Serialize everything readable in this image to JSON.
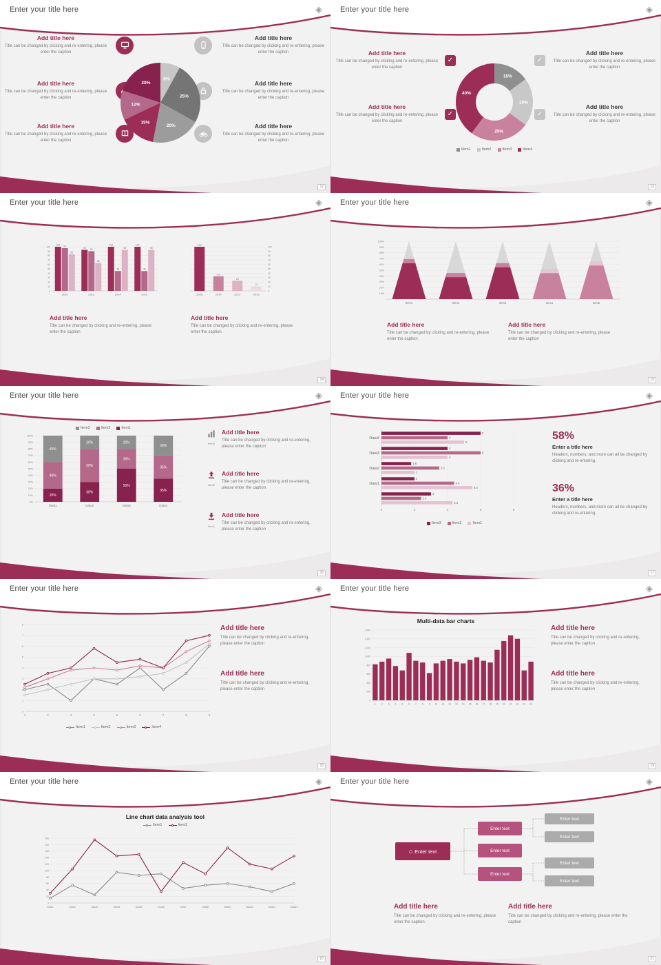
{
  "theme": {
    "maroon": "#9b2d57",
    "maroon_dark": "#86224d",
    "pink": "#c9829e",
    "pink_light": "#e3c2d1",
    "gray_dark": "#757575",
    "gray_mid": "#9c9c9c",
    "gray_light": "#c8c8c8"
  },
  "common": {
    "slide_title": "Enter your title here",
    "add_title": "Add title here",
    "caption": "Title can be changed by clicking and re-entering, please enter the caption"
  },
  "slides": {
    "s12": {
      "page": "12",
      "chart_data": {
        "type": "pie",
        "slices": [
          {
            "label": "8%",
            "value": 8,
            "color": "#c6c6c6"
          },
          {
            "label": "25%",
            "value": 25,
            "color": "#757575"
          },
          {
            "label": "20%",
            "value": 20,
            "color": "#9c9c9c"
          },
          {
            "label": "15%",
            "value": 15,
            "color": "#9b2d57"
          },
          {
            "label": "12%",
            "value": 12,
            "color": "#b4688a"
          },
          {
            "label": "20%",
            "value": 20,
            "color": "#86224d"
          }
        ]
      }
    },
    "s13": {
      "page": "13",
      "chart_data": {
        "type": "pie",
        "inner_ratio": 0.5,
        "slices": [
          {
            "label": "15%",
            "value": 15,
            "color": "#8f8f8f"
          },
          {
            "label": "20%",
            "value": 20,
            "color": "#c8c8c8"
          },
          {
            "label": "25%",
            "value": 25,
            "color": "#c9829e"
          },
          {
            "label": "40%",
            "value": 40,
            "color": "#9b2d57"
          }
        ],
        "legend": [
          {
            "label": "Item1",
            "color": "#8f8f8f"
          },
          {
            "label": "Item2",
            "color": "#c8c8c8"
          },
          {
            "label": "Item3",
            "color": "#c9829e"
          },
          {
            "label": "Item4",
            "color": "#9b2d57"
          }
        ]
      }
    },
    "s14": {
      "page": "14",
      "chart_data": [
        {
          "type": "bar",
          "categories": [
            "2010",
            "2012",
            "2014",
            "2016"
          ],
          "series": [
            {
              "color": "#9b2d57",
              "values": [
                100,
                93,
                100,
                100
              ]
            },
            {
              "color": "#b4688a",
              "values": [
                97,
                90,
                45,
                45
              ]
            },
            {
              "color": "#dcb2c4",
              "values": [
                83,
                63,
                93,
                93
              ]
            }
          ],
          "ymax": 100
        },
        {
          "type": "bar",
          "categories": [
            "2008",
            "2014",
            "2012",
            "2010"
          ],
          "values": [
            100,
            33,
            23,
            10
          ],
          "colors": [
            "#9b2d57",
            "#c9829e",
            "#dcb2c4",
            "#ecd9e1"
          ],
          "ymax": 100
        }
      ]
    },
    "s15": {
      "page": "15",
      "chart_data": {
        "type": "pyramid",
        "categories": [
          "Item1",
          "Item2",
          "Item3",
          "Item4",
          "Item5"
        ],
        "fill_pct": [
          62,
          38,
          55,
          45,
          58
        ],
        "fill_colors": [
          "#9b2d57",
          "#9b2d57",
          "#9b2d57",
          "#c9829e",
          "#c9829e"
        ],
        "band_colors": [
          "#c9829e",
          "#c9829e",
          "#c9829e",
          "#e4c6d3",
          "#e4c6d3"
        ],
        "cone_color": "#d8d8d8",
        "ylim": [
          "10%",
          "100%"
        ]
      }
    },
    "s16": {
      "page": "16",
      "legend": [
        {
          "label": "Item3",
          "color": "#8f8f8f"
        },
        {
          "label": "Item2",
          "color": "#b4688a"
        },
        {
          "label": "Item1",
          "color": "#86224d"
        }
      ],
      "rows": [
        {
          "icon": "chart-bars",
          "tag": "Item3"
        },
        {
          "icon": "arrow-up",
          "tag": "Item2"
        },
        {
          "icon": "arrow-down",
          "tag": "Item1"
        }
      ],
      "chart_data": {
        "type": "bar-stacked",
        "categories": [
          "Data1",
          "Data2",
          "Data3",
          "Data4"
        ],
        "series": [
          {
            "name": "Item1",
            "color": "#86224d",
            "values": [
              20,
              30,
              50,
              35
            ]
          },
          {
            "name": "Item2",
            "color": "#b4688a",
            "values": [
              40,
              50,
              30,
              35
            ]
          },
          {
            "name": "Item3",
            "color": "#8f8f8f",
            "values": [
              40,
              20,
              20,
              30
            ]
          }
        ],
        "ylim": [
          "0%",
          "100%"
        ]
      }
    },
    "s17": {
      "page": "17",
      "stats": [
        {
          "value": "58%",
          "title": "Enter a title here",
          "caption": "Headers, numbers, and more can all be changed by clicking and re-entering."
        },
        {
          "value": "36%",
          "title": "Enter a title here",
          "caption": "Headers, numbers, and more can all be changed by clicking and re-entering."
        }
      ],
      "chart_data": {
        "type": "bar-horizontal",
        "groups": [
          {
            "label": "Data4",
            "values": [
              6,
              4,
              5
            ]
          },
          {
            "label": "Data3",
            "values": [
              4,
              6,
              4
            ]
          },
          {
            "label": "Data2",
            "values": [
              1.8,
              3.5,
              2
            ]
          },
          {
            "label": "Data1",
            "values": [
              2,
              4.4,
              5.5
            ]
          },
          {
            "label": "",
            "values": [
              3,
              2.4,
              4.3
            ]
          }
        ],
        "series_colors": [
          "#86224d",
          "#b4688a",
          "#e3c2d1"
        ],
        "xticks": [
          0,
          2,
          4,
          6,
          8
        ],
        "xmax": 8,
        "legend": [
          {
            "label": "Item3",
            "color": "#86224d"
          },
          {
            "label": "Item2",
            "color": "#b4688a"
          },
          {
            "label": "Item1",
            "color": "#e3c2d1"
          }
        ]
      }
    },
    "s18": {
      "page": "18",
      "chart_data": {
        "type": "line",
        "x": [
          "1",
          "2",
          "3",
          "4",
          "5",
          "6",
          "7",
          "8",
          "9"
        ],
        "ymax": 8,
        "series": [
          {
            "name": "Item1",
            "color": "#8a8a8a",
            "values": [
              2,
              2.5,
              1,
              3,
              2.5,
              4,
              2,
              3.5,
              6
            ]
          },
          {
            "name": "Item2",
            "color": "#c2c2c2",
            "values": [
              1.5,
              2,
              2.5,
              3,
              3,
              3.2,
              3.5,
              4.5,
              6.2
            ]
          },
          {
            "name": "Item3",
            "color": "#c9829e",
            "values": [
              2.2,
              3,
              3.8,
              4,
              3.8,
              4.2,
              4,
              5.5,
              6.5
            ]
          },
          {
            "name": "Item4",
            "color": "#86224d",
            "values": [
              2.5,
              3.5,
              4,
              5.8,
              4.5,
              4.8,
              4,
              6.5,
              7
            ]
          }
        ]
      }
    },
    "s19": {
      "page": "19",
      "chart_data": {
        "type": "bar",
        "title": "Multi-data bar charts",
        "categories": [
          "1",
          "2",
          "3",
          "4",
          "5",
          "6",
          "7",
          "8",
          "9",
          "10",
          "11",
          "12",
          "13",
          "14",
          "15",
          "16",
          "17",
          "18",
          "19",
          "20",
          "21",
          "22",
          "23",
          "24"
        ],
        "values": [
          820,
          880,
          950,
          780,
          680,
          1080,
          900,
          860,
          620,
          840,
          900,
          940,
          880,
          840,
          920,
          980,
          900,
          860,
          1150,
          1350,
          1480,
          1400,
          680,
          880
        ],
        "ymax": 1600,
        "color": "#9b2d57"
      }
    },
    "s20": {
      "page": "20",
      "chart_data": {
        "type": "line",
        "title": "Line chart data analysis tool",
        "categories": [
          "Data1",
          "Data2",
          "Data3",
          "Data4",
          "Data5",
          "Data6",
          "Data7",
          "Data8",
          "Data9",
          "Data10",
          "Data11",
          "Data12"
        ],
        "ymax": 200,
        "series": [
          {
            "name": "Item1",
            "color": "#8a8a8a",
            "values": [
              15,
              55,
              25,
              95,
              85,
              90,
              45,
              55,
              60,
              50,
              35,
              60
            ]
          },
          {
            "name": "Item2",
            "color": "#86224d",
            "values": [
              30,
              105,
              195,
              145,
              150,
              35,
              125,
              90,
              170,
              120,
              105,
              145
            ]
          }
        ]
      }
    },
    "s21": {
      "page": "21",
      "org": {
        "main": "Enter text",
        "mid": [
          "Enter text",
          "Enter text",
          "Enter text"
        ],
        "right": [
          "Enter text",
          "Enter text",
          "Enter text",
          "Enter text"
        ]
      }
    }
  }
}
